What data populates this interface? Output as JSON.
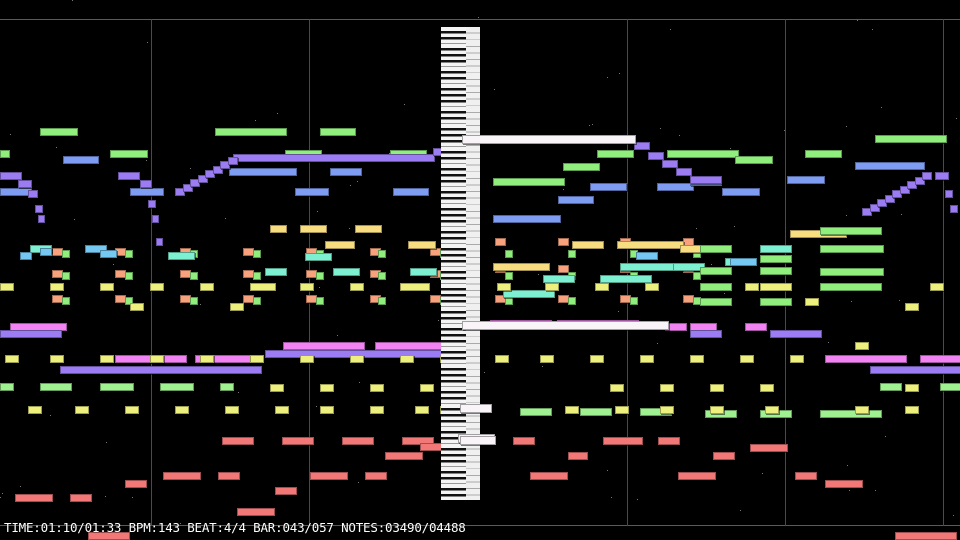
{
  "status_bar": {
    "time_label": "TIME:",
    "time": "01:10/01:33",
    "bpm_label": "BPM:",
    "bpm": "143",
    "beat_label": "BEAT:",
    "beat": "4/4",
    "bar_label": "BAR:",
    "bar": "043/057",
    "notes_label": "NOTES:",
    "notes": "03490/04488"
  },
  "colors": {
    "background": "#000000",
    "green": "#90ee7c",
    "blue": "#7d9cf2",
    "purple": "#9b7cf2",
    "orange": "#f7a27c",
    "gold": "#f7dc80",
    "lightyellow": "#eef07e",
    "teal": "#7ef0d2",
    "cyan": "#74c8f2",
    "pink": "#f283f2",
    "red": "#f27878",
    "white": "#f8f4f8",
    "lime": "#9ef090"
  }
}
